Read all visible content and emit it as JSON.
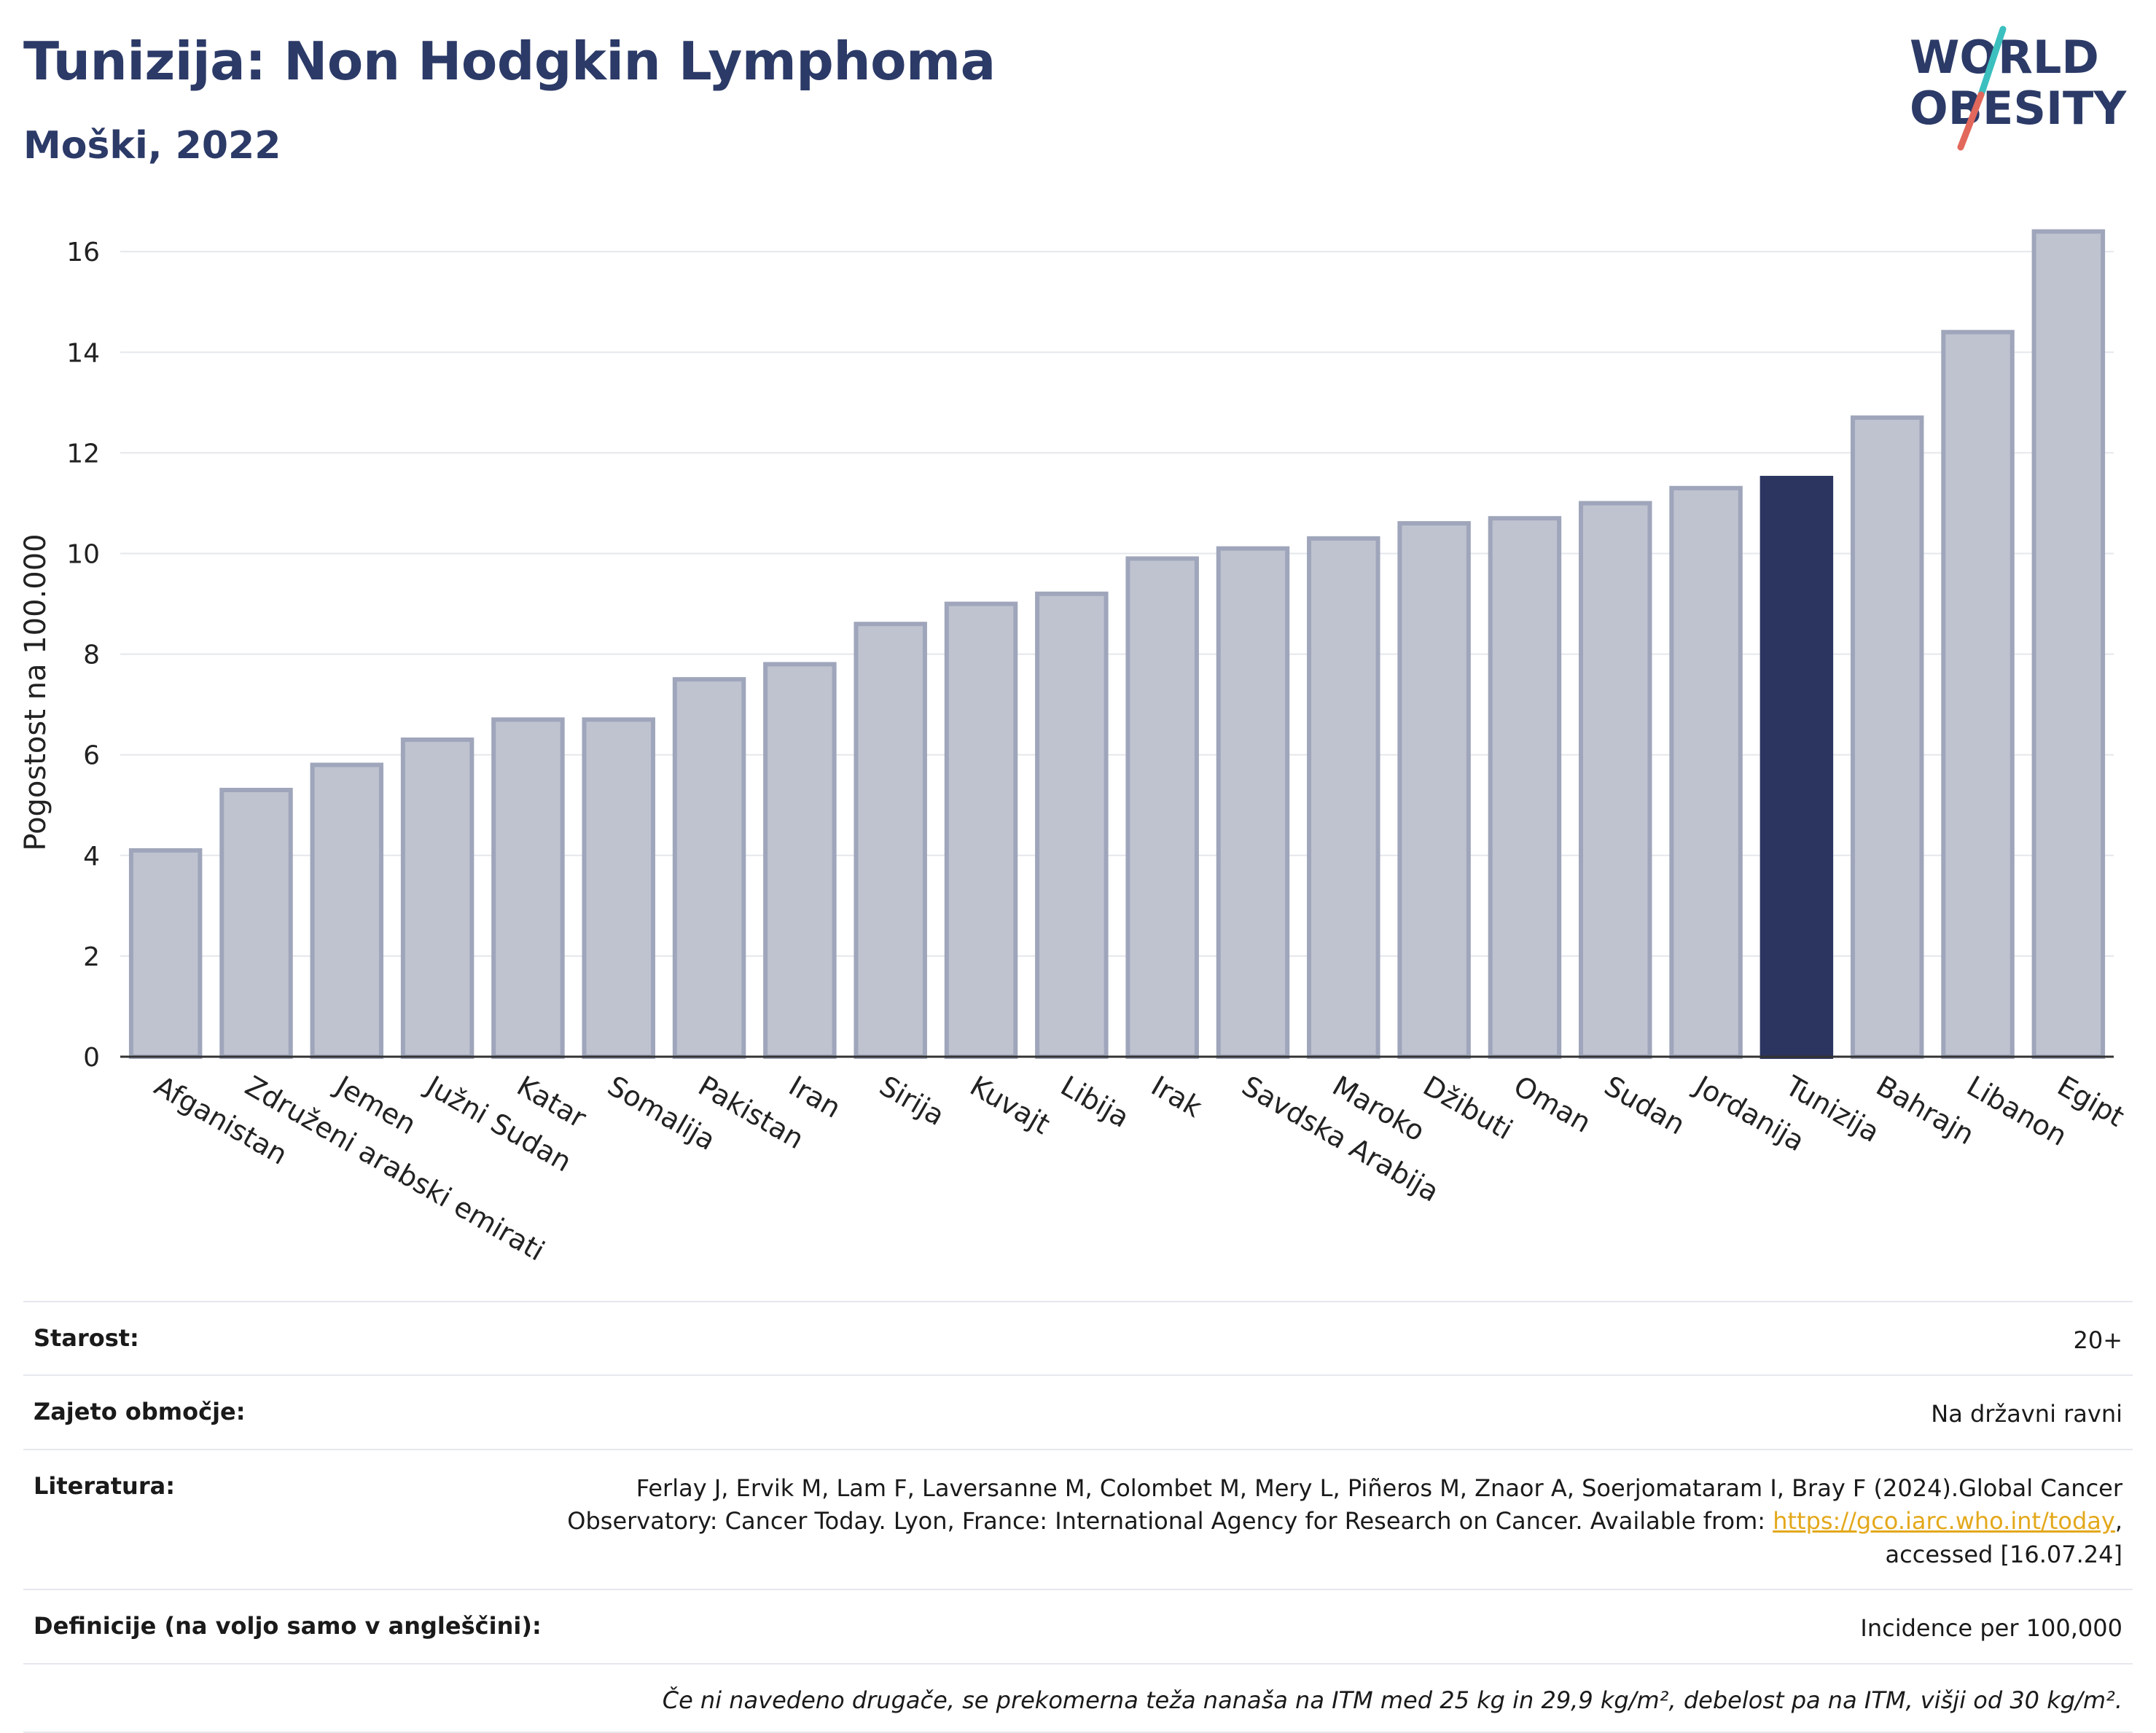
{
  "header": {
    "title": "Tunizija: Non Hodgkin Lymphoma",
    "subtitle": "Moški, 2022"
  },
  "logo": {
    "line1": "WORLD",
    "line2": "OBESITY",
    "colors": {
      "text": "#2b3a67",
      "slash_teal": "#3bbfbf",
      "slash_red": "#e2685c"
    }
  },
  "chart_data": {
    "type": "bar",
    "title": "Tunizija: Non Hodgkin Lymphoma",
    "subtitle": "Moški, 2022",
    "xlabel": "",
    "ylabel": "Pogostost na 100.000",
    "ylim": [
      0,
      16.8
    ],
    "yticks": [
      0,
      2,
      4,
      6,
      8,
      10,
      12,
      14,
      16
    ],
    "grid": true,
    "highlight": "Tunizija",
    "colors": {
      "bar": "#bfc3d0",
      "bar_edge": "#9fa6bb",
      "highlight": "#2b3560",
      "grid": "#e5e7ec",
      "axis": "#333333"
    },
    "categories": [
      "Afganistan",
      "Združeni arabski emirati",
      "Jemen",
      "Južni Sudan",
      "Katar",
      "Somalija",
      "Pakistan",
      "Iran",
      "Sirija",
      "Kuvajt",
      "Libija",
      "Irak",
      "Savdska Arabija",
      "Maroko",
      "Džibuti",
      "Oman",
      "Sudan",
      "Jordanija",
      "Tunizija",
      "Bahrajn",
      "Libanon",
      "Egipt"
    ],
    "values": [
      4.1,
      5.3,
      5.8,
      6.3,
      6.7,
      6.7,
      7.5,
      7.8,
      8.6,
      9.0,
      9.2,
      9.9,
      10.1,
      10.3,
      10.6,
      10.7,
      11.0,
      11.3,
      11.5,
      12.7,
      14.4,
      16.4
    ]
  },
  "meta": {
    "age_label": "Starost:",
    "age_value": "20+",
    "area_label": "Zajeto območje:",
    "area_value": "Na državni ravni",
    "lit_label": "Literatura:",
    "lit_text1": "Ferlay J, Ervik M, Lam F, Laversanne M, Colombet M, Mery L, Piñeros M, Znaor A, Soerjomataram I, Bray F (2024).Global Cancer Observatory: Cancer Today. Lyon, France: International Agency for Research on Cancer. Available from: ",
    "lit_link": "https://gco.iarc.who.int/today",
    "lit_text2": ", accessed [16.07.24]",
    "def_label": "Definicije (na voljo samo v angleščini):",
    "def_value": "Incidence per 100,000",
    "note": "Če ni navedeno drugače, se prekomerna teža nanaša na ITM med 25 kg in 29,9 kg/m², debelost pa na ITM, višji od 30 kg/m²."
  }
}
